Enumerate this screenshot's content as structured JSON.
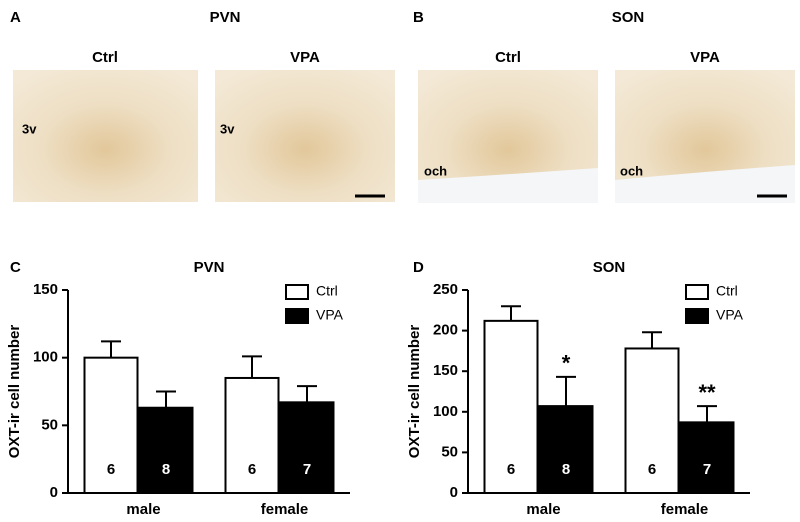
{
  "figure": {
    "panels": [
      {
        "letter": "A",
        "title": "PVN",
        "images": [
          {
            "label": "Ctrl",
            "landmark": "3v"
          },
          {
            "label": "VPA",
            "landmark": "3v"
          }
        ]
      },
      {
        "letter": "B",
        "title": "SON",
        "images": [
          {
            "label": "Ctrl",
            "landmark": "och"
          },
          {
            "label": "VPA",
            "landmark": "och"
          }
        ]
      },
      {
        "letter": "C"
      },
      {
        "letter": "D"
      }
    ]
  },
  "chart_data": [
    {
      "type": "bar",
      "title": "PVN",
      "ylabel": "OXT-ir cell number",
      "categories": [
        "male",
        "female"
      ],
      "series": [
        {
          "name": "Ctrl",
          "color": "#ffffff",
          "values": [
            100,
            85
          ],
          "errors": [
            12,
            16
          ],
          "n": [
            6,
            6
          ]
        },
        {
          "name": "VPA",
          "color": "#000000",
          "values": [
            63,
            67
          ],
          "errors": [
            12,
            12
          ],
          "n": [
            8,
            7
          ]
        }
      ],
      "ylim": [
        0,
        150
      ],
      "yticks": [
        0,
        50,
        100,
        150
      ],
      "legend": "upper right"
    },
    {
      "type": "bar",
      "title": "SON",
      "ylabel": "OXT-ir cell number",
      "categories": [
        "male",
        "female"
      ],
      "series": [
        {
          "name": "Ctrl",
          "color": "#ffffff",
          "values": [
            212,
            178
          ],
          "errors": [
            18,
            20
          ],
          "n": [
            6,
            6
          ]
        },
        {
          "name": "VPA",
          "color": "#000000",
          "values": [
            107,
            87
          ],
          "errors": [
            36,
            20
          ],
          "n": [
            8,
            7
          ],
          "significance": [
            "*",
            "**"
          ]
        }
      ],
      "ylim": [
        0,
        250
      ],
      "yticks": [
        0,
        50,
        100,
        150,
        200,
        250
      ],
      "legend": "upper right"
    }
  ]
}
